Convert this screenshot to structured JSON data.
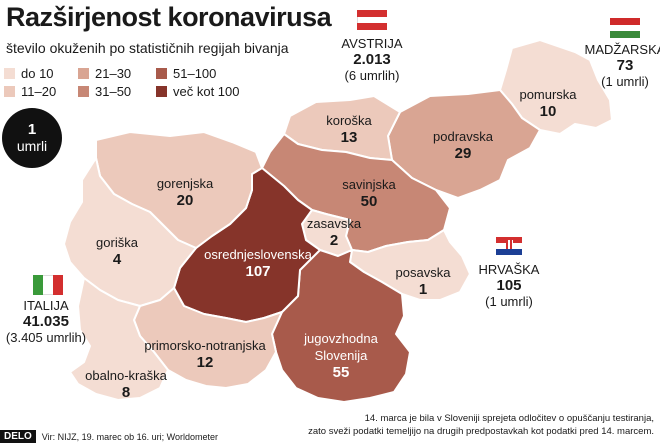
{
  "title": "Razširjenost koronavirusa",
  "subtitle": "število okuženih po statističnih regijah bivanja",
  "legend": [
    {
      "label": "do 10",
      "color": "#f4ddd3"
    },
    {
      "label": "11–20",
      "color": "#ecc9bb"
    },
    {
      "label": "21–30",
      "color": "#d9a593"
    },
    {
      "label": "31–50",
      "color": "#c78775"
    },
    {
      "label": "51–100",
      "color": "#a85a4b"
    },
    {
      "label": "več kot 100",
      "color": "#86342a"
    }
  ],
  "deaths_circle": {
    "number": "1",
    "label": "umrli"
  },
  "regions": {
    "pomurska": {
      "name": "pomurska",
      "value": "10"
    },
    "podravska": {
      "name": "podravska",
      "value": "29"
    },
    "koroska": {
      "name": "koroška",
      "value": "13"
    },
    "savinjska": {
      "name": "savinjska",
      "value": "50"
    },
    "zasavska": {
      "name": "zasavska",
      "value": "2"
    },
    "posavska": {
      "name": "posavska",
      "value": "1"
    },
    "jugovzhodna": {
      "name": "jugovzhodna Slovenija",
      "value": "55"
    },
    "osrednjeslovenska": {
      "name": "osrednjeslovenska",
      "value": "107"
    },
    "gorenjska": {
      "name": "gorenjska",
      "value": "20"
    },
    "goriska": {
      "name": "goriška",
      "value": "4"
    },
    "primorsko": {
      "name": "primorsko-notranjska",
      "value": "12"
    },
    "obalno": {
      "name": "obalno-kraška",
      "value": "8"
    }
  },
  "countries": {
    "austria": {
      "name": "AVSTRIJA",
      "cases": "2.013",
      "deaths": "(6 umrlih)"
    },
    "hungary": {
      "name": "MADŽARSKA",
      "cases": "73",
      "deaths": "(1 umrli)"
    },
    "croatia": {
      "name": "HRVAŠKA",
      "cases": "105",
      "deaths": "(1 umrli)"
    },
    "italy": {
      "name": "ITALIJA",
      "cases": "41.035",
      "deaths": "(3.405 umrlih)"
    }
  },
  "footer": {
    "logo": "DELO",
    "source": "Vir: NIJZ, 19. marec ob 16. uri; Worldometer",
    "note_line1": "14. marca je bila v Sloveniji sprejeta odločitev o opuščanju testiranja,",
    "note_line2": "zato sveži podatki temeljijo na drugih predpostavkah kot podatki pred 14. marcem."
  }
}
